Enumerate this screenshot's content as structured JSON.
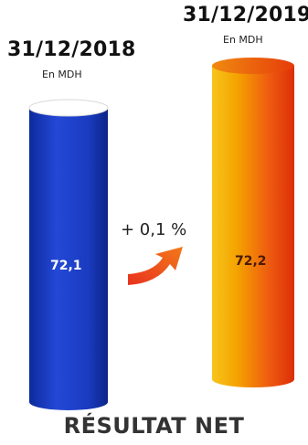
{
  "chart_data": {
    "type": "bar",
    "title": "RÉSULTAT NET",
    "unit": "En MDH",
    "categories": [
      "31/12/2018",
      "31/12/2019"
    ],
    "values": [
      72.1,
      72.2
    ],
    "value_labels": [
      "72,1",
      "72,2"
    ],
    "change_label": "+ 0,1 %",
    "colors": [
      "#1a3fc8",
      "#f5a800"
    ]
  }
}
